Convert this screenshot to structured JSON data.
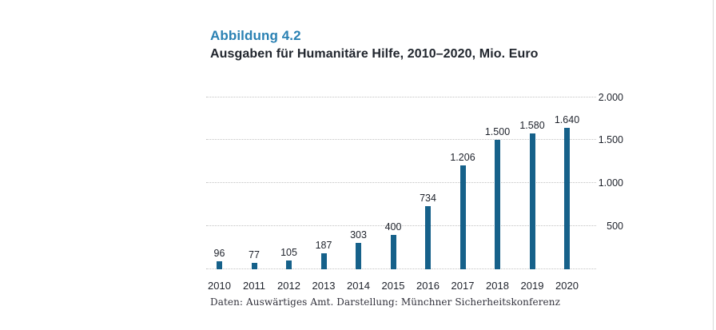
{
  "page": {
    "figure_label": "Abbildung 4.2",
    "title": "Ausgaben für Humanitäre Hilfe, 2010–2020, Mio. Euro",
    "source": "Daten: Auswärtiges Amt. Darstellung: Münchner Sicherheitskonferenz"
  },
  "colors": {
    "bar": "#16618a",
    "figure_label_accent": "#2a81b3",
    "title_text": "#21262e",
    "axis_text": "#1e222b",
    "gridline": "#c3c3c3",
    "page_edge": "#d9d9d9",
    "background": "#ffffff"
  },
  "chart_data": {
    "type": "bar",
    "title": "Ausgaben für Humanitäre Hilfe, 2010–2020, Mio. Euro",
    "unit": "Mio. Euro",
    "categories": [
      "2010",
      "2011",
      "2012",
      "2013",
      "2014",
      "2015",
      "2016",
      "2017",
      "2018",
      "2019",
      "2020"
    ],
    "values": [
      96,
      77,
      105,
      187,
      303,
      400,
      734,
      1206,
      1500,
      1580,
      1640
    ],
    "value_labels": [
      "96",
      "77",
      "105",
      "187",
      "303",
      "400",
      "734",
      "1.206",
      "1.500",
      "1.580",
      "1.640"
    ],
    "ylim": [
      0,
      2000
    ],
    "yticks": [
      {
        "value": 500,
        "label": "500"
      },
      {
        "value": 1000,
        "label": "1.000"
      },
      {
        "value": 1500,
        "label": "1.500"
      },
      {
        "value": 2000,
        "label": "2.000"
      }
    ],
    "grid": "horizontal-dotted",
    "baseline_dotted": true,
    "legend": "none",
    "value_labels_position": "above-bars",
    "ytick_position": "right"
  }
}
